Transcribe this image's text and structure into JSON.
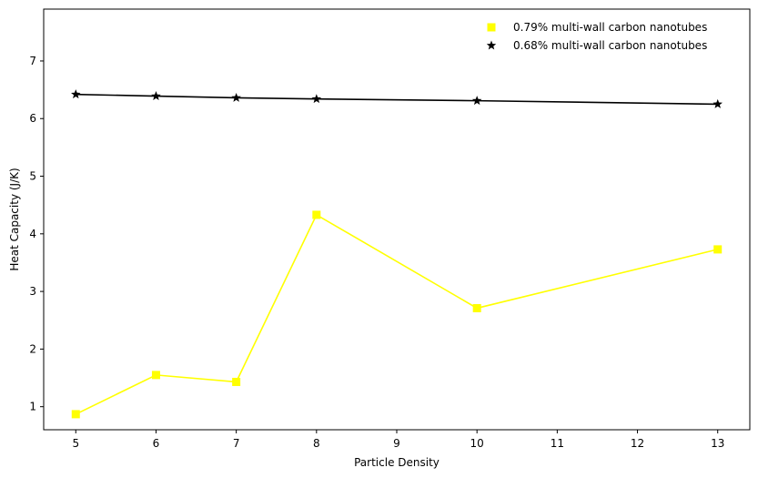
{
  "chart_data": {
    "type": "line",
    "xlabel": "Particle Density",
    "ylabel": "Heat Capacity (J/K)",
    "xlim": [
      4.6,
      13.4
    ],
    "ylim": [
      0.6,
      7.9
    ],
    "xticks": [
      5,
      6,
      7,
      8,
      9,
      10,
      11,
      12,
      13
    ],
    "yticks": [
      1,
      2,
      3,
      4,
      5,
      6,
      7
    ],
    "grid": false,
    "legend_position": "top-right",
    "series": [
      {
        "name": "0.79% multi-wall carbon nanotubes",
        "color": "#ffff00",
        "marker": "square",
        "x": [
          5,
          6,
          7,
          8,
          10,
          13
        ],
        "y": [
          0.87,
          1.55,
          1.43,
          4.33,
          2.71,
          3.73
        ]
      },
      {
        "name": "0.68% multi-wall carbon nanotubes",
        "color": "#000000",
        "marker": "star",
        "x": [
          5,
          6,
          7,
          8,
          10,
          13
        ],
        "y": [
          6.42,
          6.39,
          6.36,
          6.34,
          6.31,
          6.25
        ]
      }
    ]
  }
}
